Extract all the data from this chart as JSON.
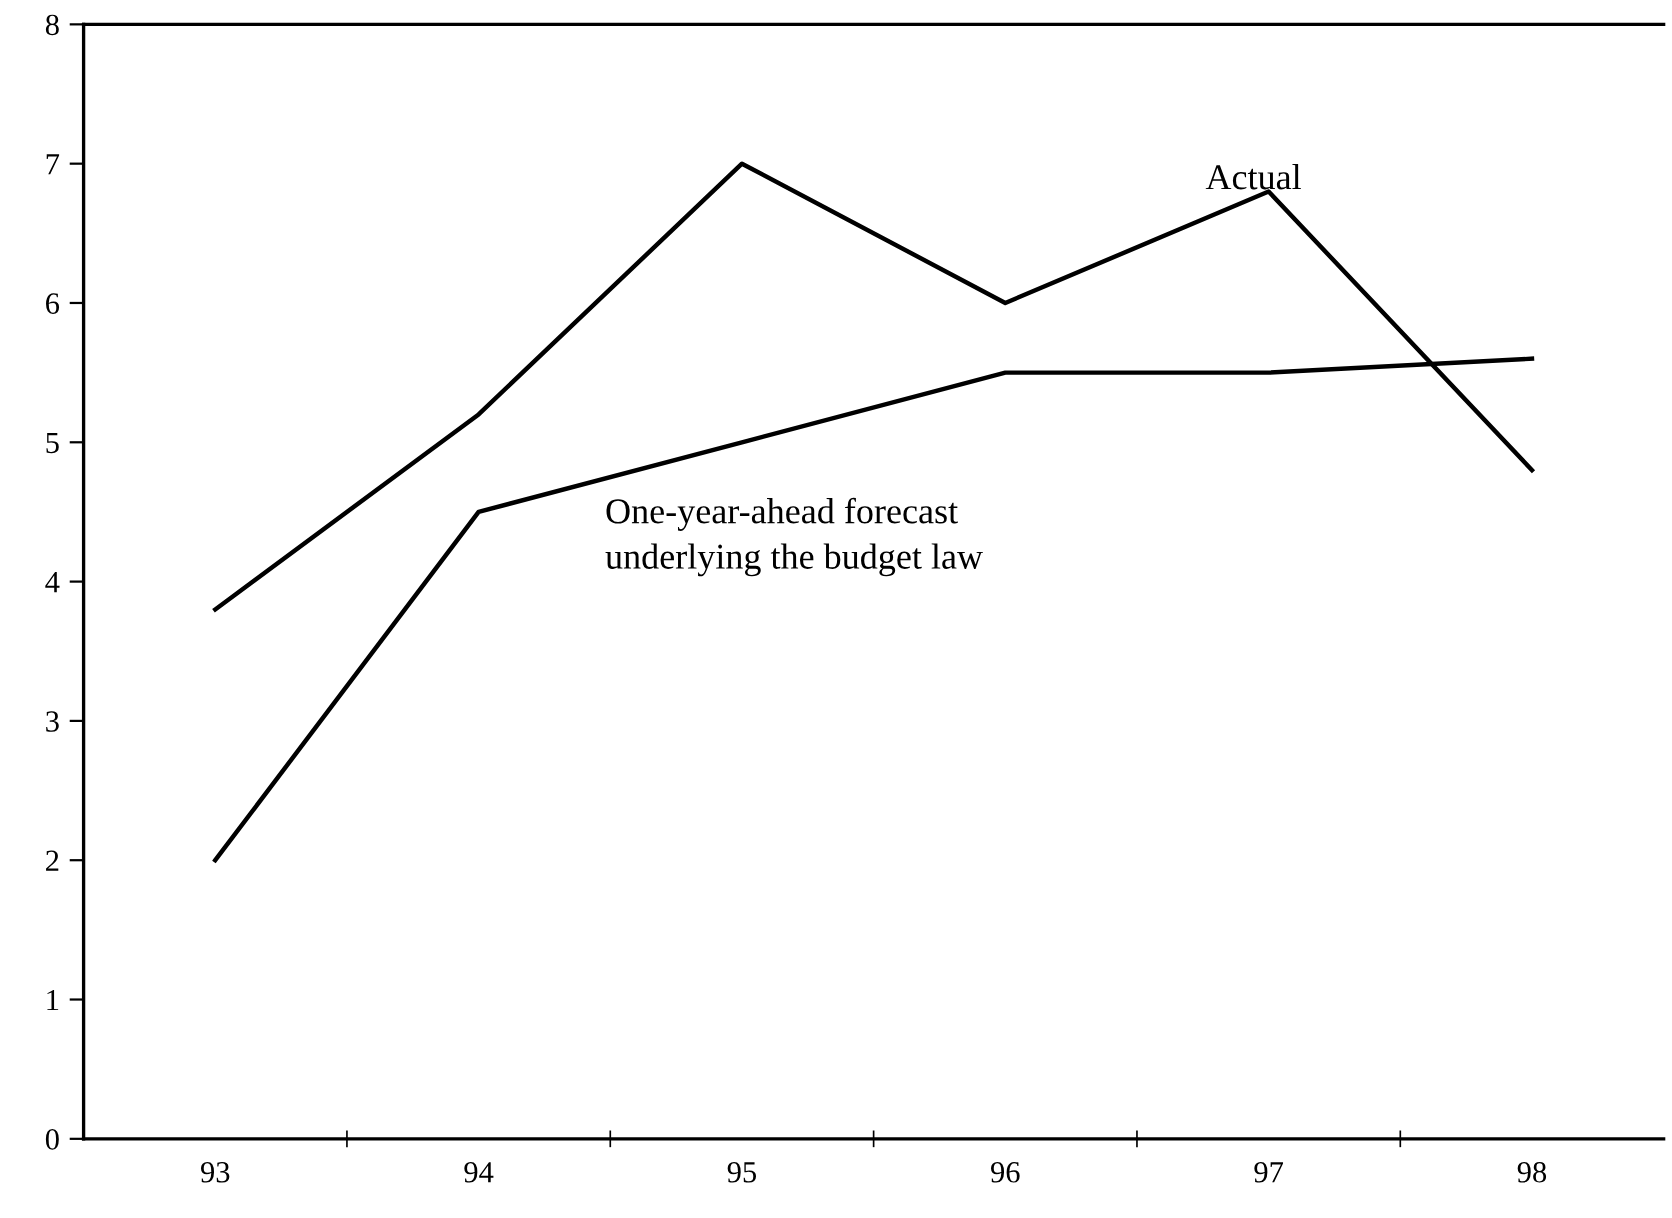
{
  "chart_data": {
    "type": "line",
    "categories": [
      "93",
      "94",
      "95",
      "96",
      "97",
      "98"
    ],
    "series": [
      {
        "name": "Actual",
        "color": "#000000",
        "values": [
          3.8,
          5.2,
          7.0,
          6.0,
          6.8,
          4.8
        ]
      },
      {
        "name": "One-year-ahead forecast\nunderlying the budget law",
        "color": "#000000",
        "values": [
          2.0,
          4.5,
          5.0,
          5.5,
          5.5,
          5.6
        ]
      }
    ],
    "ylim": [
      0,
      8
    ],
    "yticks": [
      0,
      1,
      2,
      3,
      4,
      5,
      6,
      7,
      8
    ],
    "grid": false,
    "legend": false,
    "marker": "none",
    "line_style": "solid"
  }
}
